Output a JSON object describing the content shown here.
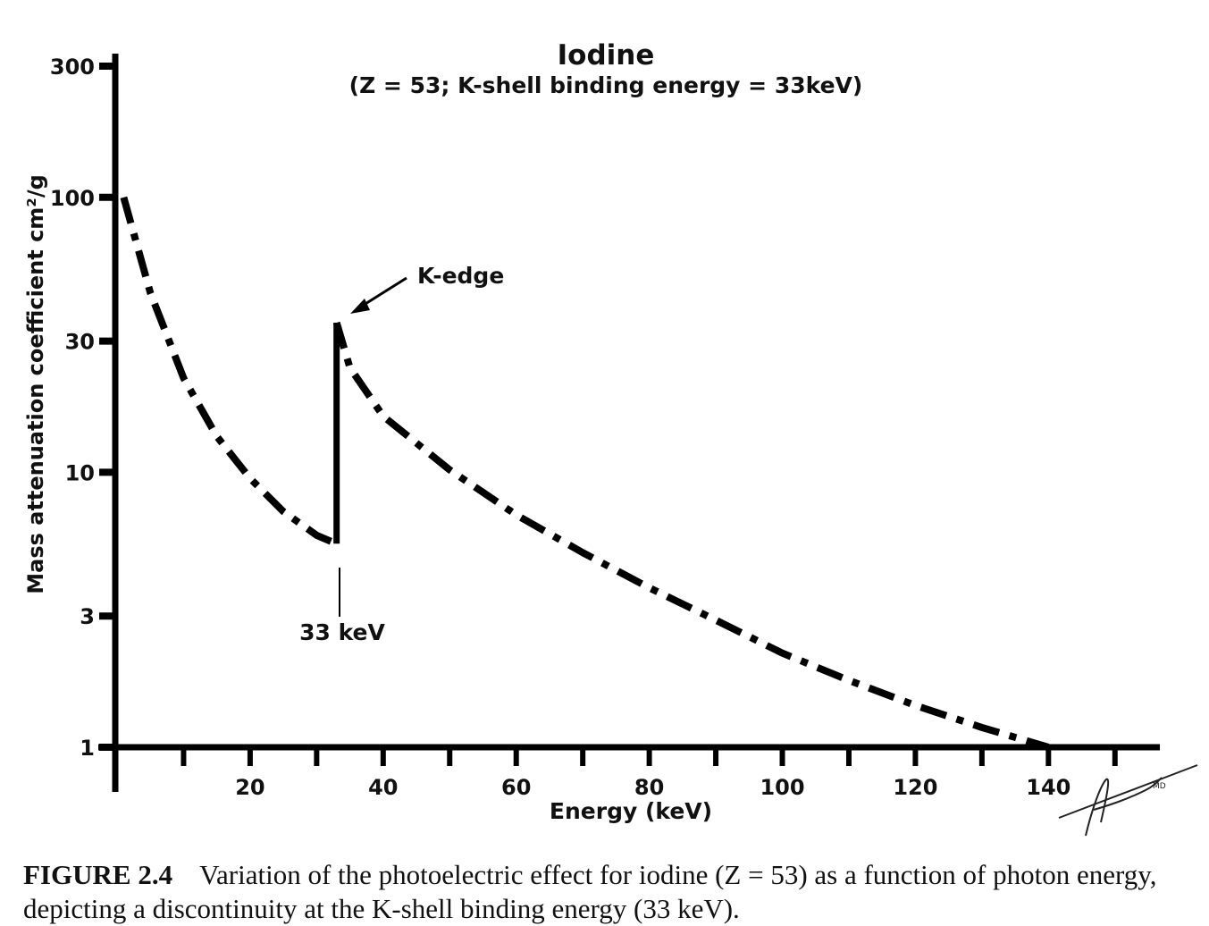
{
  "chart_data": {
    "type": "line",
    "title": "Iodine",
    "subtitle": "(Z = 53; K-shell binding energy = 33keV)",
    "xlabel": "Energy (keV)",
    "ylabel": "Mass attenuation coefficient cm²/g",
    "y_scale": "log",
    "xlim": [
      0,
      155
    ],
    "ylim": [
      1,
      300
    ],
    "x_ticks": [
      20,
      40,
      60,
      80,
      100,
      120,
      140
    ],
    "x_minor_ticks": [
      10,
      30,
      50,
      70,
      90,
      110,
      130,
      150
    ],
    "y_ticks": [
      1,
      3,
      10,
      30,
      100,
      300
    ],
    "line_style": "dash-dot",
    "series": [
      {
        "x": [
          1,
          5,
          10,
          15,
          20,
          25,
          30,
          33,
          33,
          35,
          40,
          50,
          60,
          70,
          80,
          90,
          100,
          110,
          120,
          130,
          140
        ],
        "y": [
          100,
          45,
          22,
          13.5,
          9.5,
          7.2,
          5.9,
          5.5,
          35,
          24,
          16,
          10.2,
          7,
          5.1,
          3.8,
          2.9,
          2.2,
          1.75,
          1.42,
          1.18,
          1.0
        ]
      }
    ],
    "annotations": [
      {
        "text": "K-edge",
        "x": 33,
        "y": 35
      },
      {
        "text": "33 keV",
        "x": 33,
        "y": 5.5
      }
    ]
  },
  "caption": {
    "label": "FIGURE 2.4",
    "text": "Variation of the photoelectric effect for iodine (Z = 53) as a function of photon energy, depicting a discontinuity at the K-shell binding energy (33 keV)."
  }
}
